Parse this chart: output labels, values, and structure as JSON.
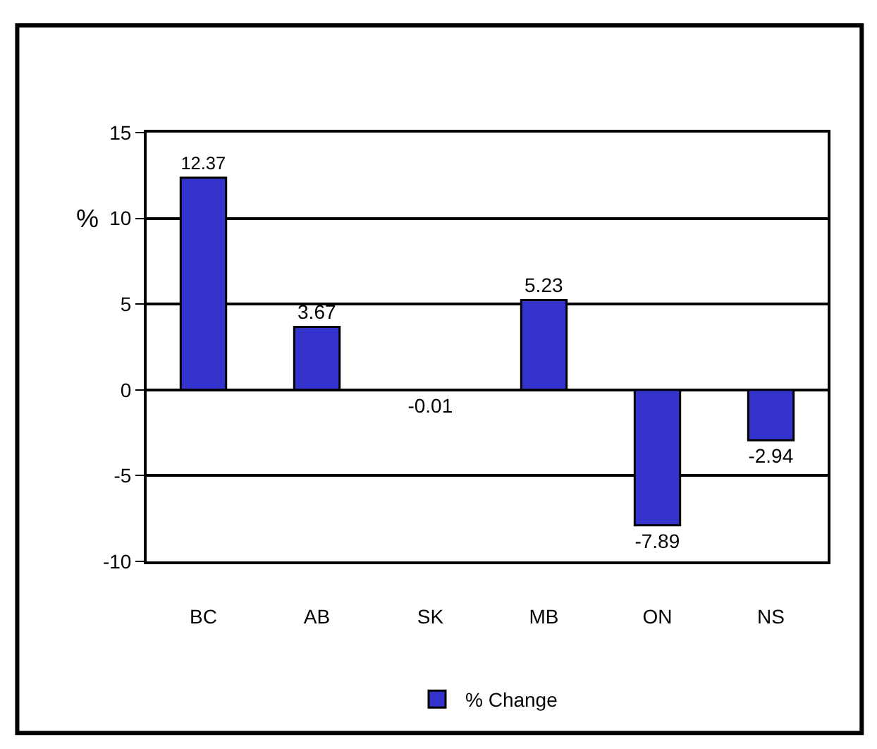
{
  "chart_data": {
    "type": "bar",
    "ylabel": "%",
    "categories": [
      "BC",
      "AB",
      "SK",
      "MB",
      "ON",
      "NS"
    ],
    "series": [
      {
        "name": "% Change",
        "color": "#3333cc",
        "values": [
          12.37,
          3.67,
          -0.01,
          5.23,
          -7.89,
          -2.94
        ]
      }
    ],
    "ylim": [
      -10,
      15
    ],
    "yticks": [
      -10,
      -5,
      0,
      5,
      10,
      15
    ],
    "grid": "y",
    "data_labels": true,
    "legend": "bottom"
  }
}
